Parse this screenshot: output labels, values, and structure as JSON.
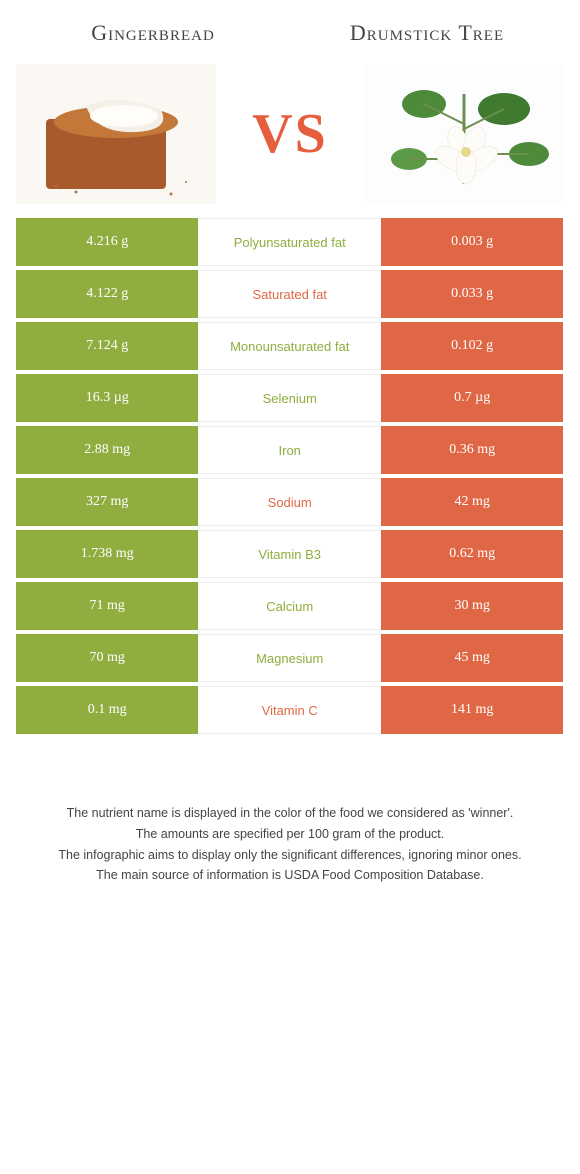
{
  "colors": {
    "left": "#8fae3f",
    "right": "#e06745",
    "vs": "#e65e3d",
    "text_left_winner": "#8fae3f",
    "text_right_winner": "#e06745"
  },
  "header": {
    "left_title": "Gingerbread",
    "right_title": "Drumstick Tree",
    "vs": "VS"
  },
  "rows": [
    {
      "left": "4.216 g",
      "label": "Polyunsaturated fat",
      "right": "0.003 g",
      "winner": "left"
    },
    {
      "left": "4.122 g",
      "label": "Saturated fat",
      "right": "0.033 g",
      "winner": "right"
    },
    {
      "left": "7.124 g",
      "label": "Monounsaturated fat",
      "right": "0.102 g",
      "winner": "left"
    },
    {
      "left": "16.3 µg",
      "label": "Selenium",
      "right": "0.7 µg",
      "winner": "left"
    },
    {
      "left": "2.88 mg",
      "label": "Iron",
      "right": "0.36 mg",
      "winner": "left"
    },
    {
      "left": "327 mg",
      "label": "Sodium",
      "right": "42 mg",
      "winner": "right"
    },
    {
      "left": "1.738 mg",
      "label": "Vitamin B3",
      "right": "0.62 mg",
      "winner": "left"
    },
    {
      "left": "71 mg",
      "label": "Calcium",
      "right": "30 mg",
      "winner": "left"
    },
    {
      "left": "70 mg",
      "label": "Magnesium",
      "right": "45 mg",
      "winner": "left"
    },
    {
      "left": "0.1 mg",
      "label": "Vitamin C",
      "right": "141 mg",
      "winner": "right"
    }
  ],
  "footnotes": [
    "The nutrient name is displayed in the color of the food we considered as 'winner'.",
    "The amounts are specified per 100 gram of the product.",
    "The infographic aims to display only the significant differences, ignoring minor ones.",
    "The main source of information is USDA Food Composition Database."
  ]
}
